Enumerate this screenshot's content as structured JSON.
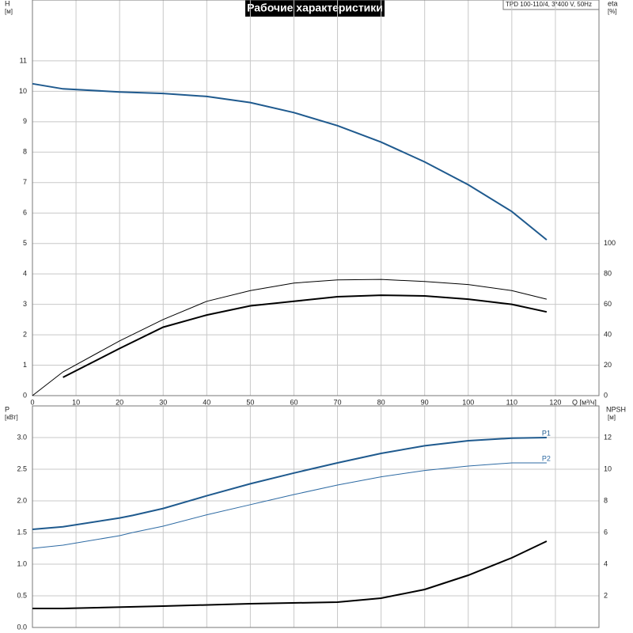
{
  "chart_data": [
    {
      "type": "line",
      "title": "Рабочие характеристики",
      "note": "TPD 100-110/4, 3*400 V, 50Hz",
      "xlabel": "Q [м³/ч]",
      "ylabel": "H",
      "yunit": "[м]",
      "y2label": "eta",
      "y2unit": "[%]",
      "xlim": [
        0,
        130
      ],
      "xticks": [
        0,
        10,
        20,
        30,
        40,
        50,
        60,
        70,
        80,
        90,
        100,
        110,
        120
      ],
      "ylim": [
        0,
        13
      ],
      "yticks": [
        0,
        1,
        2,
        3,
        4,
        5,
        6,
        7,
        8,
        9,
        10,
        11
      ],
      "y2lim": [
        0,
        260
      ],
      "y2ticks": [
        0,
        20,
        40,
        60,
        80,
        100
      ],
      "grid": true,
      "series": [
        {
          "color": "#1f5a8e",
          "x": [
            0,
            7,
            20,
            30,
            40,
            50,
            60,
            70,
            80,
            90,
            100,
            110,
            118
          ],
          "values": [
            10.25,
            10.08,
            9.98,
            9.93,
            9.83,
            9.63,
            9.3,
            8.87,
            8.33,
            7.68,
            6.93,
            6.05,
            5.12
          ]
        },
        {
          "color": "#000000",
          "axis": "y2",
          "x": [
            0,
            7,
            20,
            30,
            40,
            50,
            60,
            70,
            80,
            90,
            100,
            110,
            118
          ],
          "values": [
            0,
            15.6,
            36,
            50,
            62,
            69,
            74,
            76,
            76.4,
            75,
            73,
            69,
            63.4
          ]
        },
        {
          "color": "#000000",
          "axis": "y2",
          "x": [
            7,
            20,
            30,
            40,
            50,
            60,
            70,
            80,
            90,
            100,
            110,
            118
          ],
          "values": [
            12,
            31,
            45,
            53,
            59,
            62,
            65,
            66,
            65.5,
            63.4,
            60,
            55
          ]
        }
      ]
    },
    {
      "type": "line",
      "ylabel": "P",
      "yunit": "[кВт]",
      "y2label": "NPSH",
      "y2unit": "[м]",
      "xlim": [
        0,
        130
      ],
      "ylim": [
        0,
        3.5
      ],
      "yticks": [
        {
          "value": 0,
          "label": "0.0"
        },
        0.5,
        {
          "value": 1,
          "label": "1.0"
        },
        1.5,
        {
          "value": 2,
          "label": "2.0"
        },
        2.5,
        {
          "value": 3,
          "label": "3.0"
        }
      ],
      "y2lim": [
        0,
        14
      ],
      "y2ticks": [
        2,
        4,
        6,
        8,
        10,
        12
      ],
      "grid": true,
      "series": [
        {
          "name": "P1",
          "color": "#1f5a8e",
          "x": [
            0,
            7,
            20,
            23,
            30,
            40,
            50,
            60,
            70,
            80,
            90,
            100,
            110,
            118
          ],
          "values": [
            1.55,
            1.59,
            1.73,
            1.77,
            1.88,
            2.08,
            2.27,
            2.44,
            2.6,
            2.75,
            2.87,
            2.95,
            2.99,
            3.0
          ]
        },
        {
          "name": "P2",
          "color": "#2d6aa3",
          "x": [
            0,
            7,
            20,
            23,
            30,
            40,
            50,
            60,
            70,
            80,
            90,
            100,
            110,
            118
          ],
          "values": [
            1.25,
            1.3,
            1.45,
            1.5,
            1.6,
            1.78,
            1.94,
            2.1,
            2.25,
            2.38,
            2.48,
            2.55,
            2.6,
            2.6
          ]
        },
        {
          "color": "#000000",
          "axis": "y2",
          "x": [
            0,
            7,
            30,
            50,
            70,
            80,
            90,
            100,
            110,
            118
          ],
          "values": [
            1.2,
            1.2,
            1.35,
            1.5,
            1.6,
            1.85,
            2.4,
            3.3,
            4.4,
            5.45
          ]
        }
      ]
    }
  ]
}
